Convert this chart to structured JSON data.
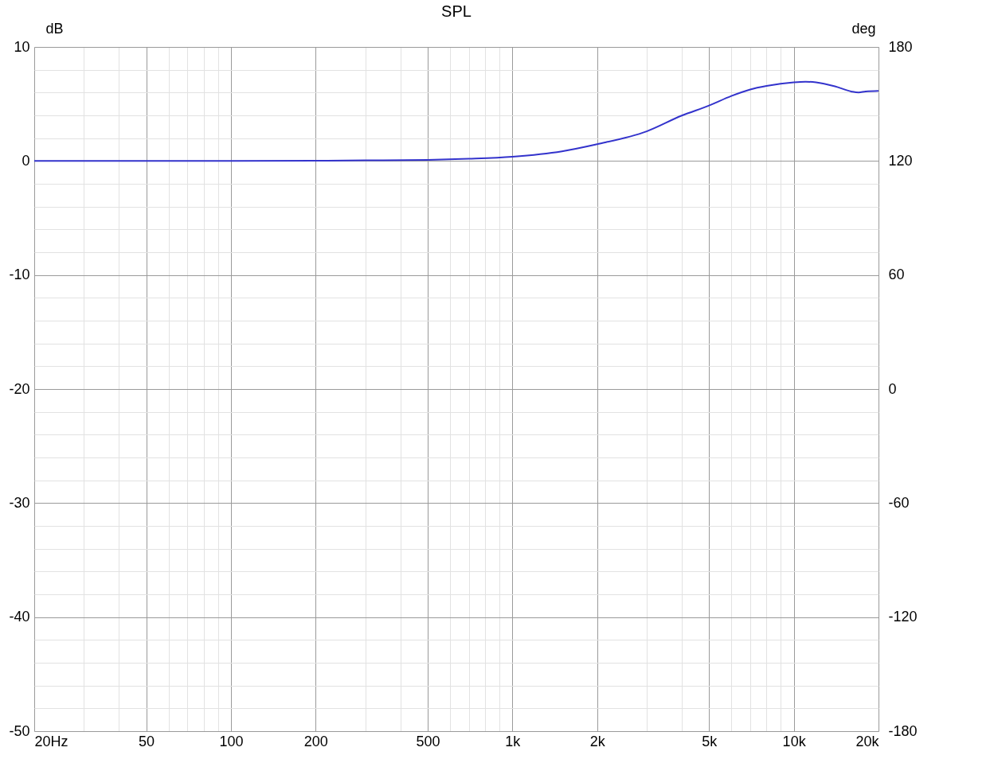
{
  "chart_data": {
    "type": "line",
    "title": "SPL",
    "ylabel": "dB",
    "y2label": "deg",
    "x": [
      20,
      50,
      100,
      200,
      300,
      500,
      700,
      1000,
      1500,
      2000,
      3000,
      4000,
      5000,
      6000,
      7000,
      8000,
      10000,
      11000,
      12000,
      14000,
      16000,
      17000,
      18000,
      20000
    ],
    "series": [
      {
        "color": "#3333cc",
        "values": [
          0,
          0,
          0,
          0.02,
          0.05,
          0.1,
          0.2,
          0.38,
          0.85,
          1.47,
          2.6,
          3.98,
          4.86,
          5.7,
          6.27,
          6.58,
          6.9,
          6.95,
          6.9,
          6.55,
          6.1,
          6.0,
          6.1,
          6.15
        ]
      }
    ],
    "log": "x",
    "xlim": [
      20,
      20000
    ],
    "xticks": [
      {
        "value": 20,
        "label": "20Hz"
      },
      {
        "value": 30,
        "label": null
      },
      {
        "value": 40,
        "label": null
      },
      50,
      {
        "value": 60,
        "label": null
      },
      {
        "value": 70,
        "label": null
      },
      {
        "value": 80,
        "label": null
      },
      {
        "value": 90,
        "label": null
      },
      100,
      200,
      {
        "value": 300,
        "label": null
      },
      {
        "value": 400,
        "label": null
      },
      500,
      {
        "value": 600,
        "label": null
      },
      {
        "value": 700,
        "label": null
      },
      {
        "value": 800,
        "label": null
      },
      {
        "value": 900,
        "label": null
      },
      {
        "value": 1000,
        "label": "1k"
      },
      {
        "value": 2000,
        "label": "2k"
      },
      {
        "value": 3000,
        "label": null
      },
      {
        "value": 4000,
        "label": null
      },
      {
        "value": 5000,
        "label": "5k"
      },
      {
        "value": 6000,
        "label": null
      },
      {
        "value": 7000,
        "label": null
      },
      {
        "value": 8000,
        "label": null
      },
      {
        "value": 9000,
        "label": null
      },
      {
        "value": 10000,
        "label": "10k"
      },
      {
        "value": 20000,
        "label": "20k"
      }
    ],
    "ylim": [
      -50,
      10
    ],
    "yticks": [
      -50,
      {
        "value": -48,
        "label": null
      },
      {
        "value": -46,
        "label": null
      },
      {
        "value": -44,
        "label": null
      },
      {
        "value": -42,
        "label": null
      },
      -40,
      {
        "value": -38,
        "label": null
      },
      {
        "value": -36,
        "label": null
      },
      {
        "value": -34,
        "label": null
      },
      {
        "value": -32,
        "label": null
      },
      -30,
      {
        "value": -28,
        "label": null
      },
      {
        "value": -26,
        "label": null
      },
      {
        "value": -24,
        "label": null
      },
      {
        "value": -22,
        "label": null
      },
      -20,
      {
        "value": -18,
        "label": null
      },
      {
        "value": -16,
        "label": null
      },
      {
        "value": -14,
        "label": null
      },
      {
        "value": -12,
        "label": null
      },
      -10,
      {
        "value": -8,
        "label": null
      },
      {
        "value": -6,
        "label": null
      },
      {
        "value": -4,
        "label": null
      },
      {
        "value": -2,
        "label": null
      },
      0,
      {
        "value": 2,
        "label": null
      },
      {
        "value": 4,
        "label": null
      },
      {
        "value": 6,
        "label": null
      },
      {
        "value": 8,
        "label": null
      },
      10
    ],
    "y2lim": [
      -180,
      180
    ],
    "y2ticks": [
      -180,
      -120,
      -60,
      0,
      60,
      120,
      180
    ],
    "grid": true,
    "marker": "none",
    "line_style": "solid"
  }
}
